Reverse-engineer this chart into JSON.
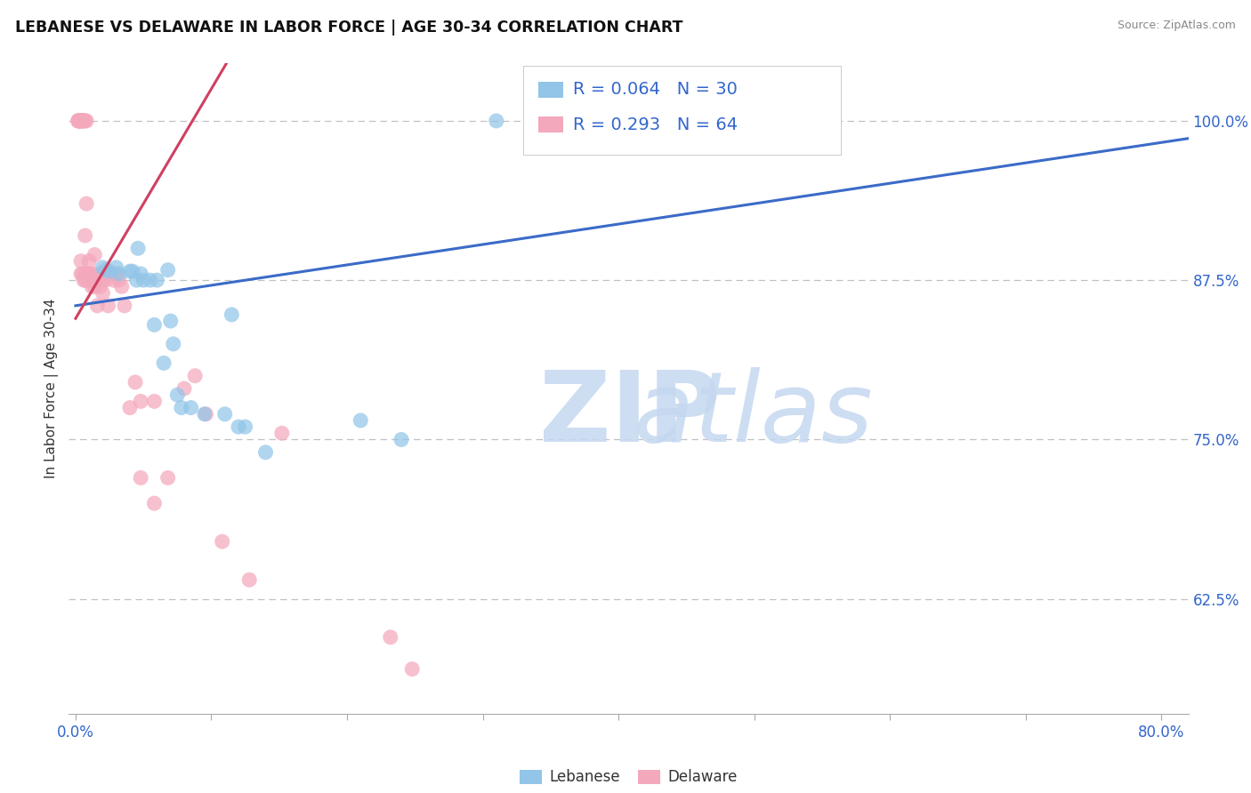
{
  "title": "LEBANESE VS DELAWARE IN LABOR FORCE | AGE 30-34 CORRELATION CHART",
  "source": "Source: ZipAtlas.com",
  "ylabel": "In Labor Force | Age 30-34",
  "xlim": [
    -0.005,
    0.82
  ],
  "ylim": [
    0.535,
    1.045
  ],
  "x_ticks": [
    0.0,
    0.1,
    0.2,
    0.3,
    0.4,
    0.5,
    0.6,
    0.7,
    0.8
  ],
  "x_tick_labels": [
    "0.0%",
    "",
    "",
    "",
    "",
    "",
    "",
    "",
    "80.0%"
  ],
  "y_tick_vals": [
    0.625,
    0.75,
    0.875,
    1.0
  ],
  "y_tick_labels": [
    "62.5%",
    "75.0%",
    "87.5%",
    "100.0%"
  ],
  "R_blue": "0.064",
  "N_blue": "30",
  "R_pink": "0.293",
  "N_pink": "64",
  "blue_color": "#92C5E8",
  "pink_color": "#F4A8BC",
  "blue_line_color": "#3B6BC8",
  "pink_line_color": "#D04060",
  "blue_scatter_x": [
    0.02,
    0.022,
    0.025,
    0.03,
    0.032,
    0.04,
    0.042,
    0.045,
    0.046,
    0.048,
    0.05,
    0.055,
    0.058,
    0.06,
    0.065,
    0.068,
    0.07,
    0.072,
    0.075,
    0.078,
    0.085,
    0.095,
    0.11,
    0.115,
    0.12,
    0.125,
    0.14,
    0.21,
    0.24,
    0.31
  ],
  "blue_scatter_y": [
    0.885,
    0.883,
    0.882,
    0.885,
    0.88,
    0.882,
    0.882,
    0.875,
    0.9,
    0.88,
    0.875,
    0.875,
    0.84,
    0.875,
    0.81,
    0.883,
    0.843,
    0.825,
    0.785,
    0.775,
    0.775,
    0.77,
    0.77,
    0.848,
    0.76,
    0.76,
    0.74,
    0.765,
    0.75,
    1.0
  ],
  "pink_scatter_x": [
    0.002,
    0.002,
    0.002,
    0.002,
    0.003,
    0.003,
    0.003,
    0.003,
    0.004,
    0.004,
    0.004,
    0.004,
    0.005,
    0.005,
    0.005,
    0.006,
    0.006,
    0.006,
    0.007,
    0.007,
    0.007,
    0.008,
    0.008,
    0.008,
    0.009,
    0.009,
    0.01,
    0.01,
    0.01,
    0.012,
    0.012,
    0.013,
    0.014,
    0.014,
    0.016,
    0.016,
    0.018,
    0.019,
    0.02,
    0.02,
    0.02,
    0.022,
    0.024,
    0.026,
    0.028,
    0.03,
    0.032,
    0.034,
    0.036,
    0.04,
    0.044,
    0.048,
    0.048,
    0.058,
    0.058,
    0.068,
    0.08,
    0.088,
    0.096,
    0.108,
    0.128,
    0.152,
    0.232,
    0.248
  ],
  "pink_scatter_y": [
    1.0,
    1.0,
    1.0,
    1.0,
    1.0,
    1.0,
    1.0,
    1.0,
    1.0,
    1.0,
    0.88,
    0.89,
    1.0,
    1.0,
    0.88,
    1.0,
    0.875,
    1.0,
    0.91,
    1.0,
    0.875,
    1.0,
    0.935,
    0.88,
    0.88,
    0.875,
    0.89,
    0.88,
    0.875,
    0.875,
    0.87,
    0.88,
    0.895,
    0.87,
    0.875,
    0.855,
    0.87,
    0.88,
    0.875,
    0.865,
    0.88,
    0.875,
    0.855,
    0.88,
    0.875,
    0.88,
    0.875,
    0.87,
    0.855,
    0.775,
    0.795,
    0.78,
    0.72,
    0.78,
    0.7,
    0.72,
    0.79,
    0.8,
    0.77,
    0.67,
    0.64,
    0.755,
    0.595,
    0.57
  ],
  "blue_trend_x": [
    0.0,
    0.82
  ],
  "blue_trend_slope": 0.16,
  "blue_trend_intercept": 0.855,
  "pink_trend_x_start": 0.0,
  "pink_trend_x_end": 0.26,
  "pink_trend_slope": 1.8,
  "pink_trend_intercept": 0.845
}
